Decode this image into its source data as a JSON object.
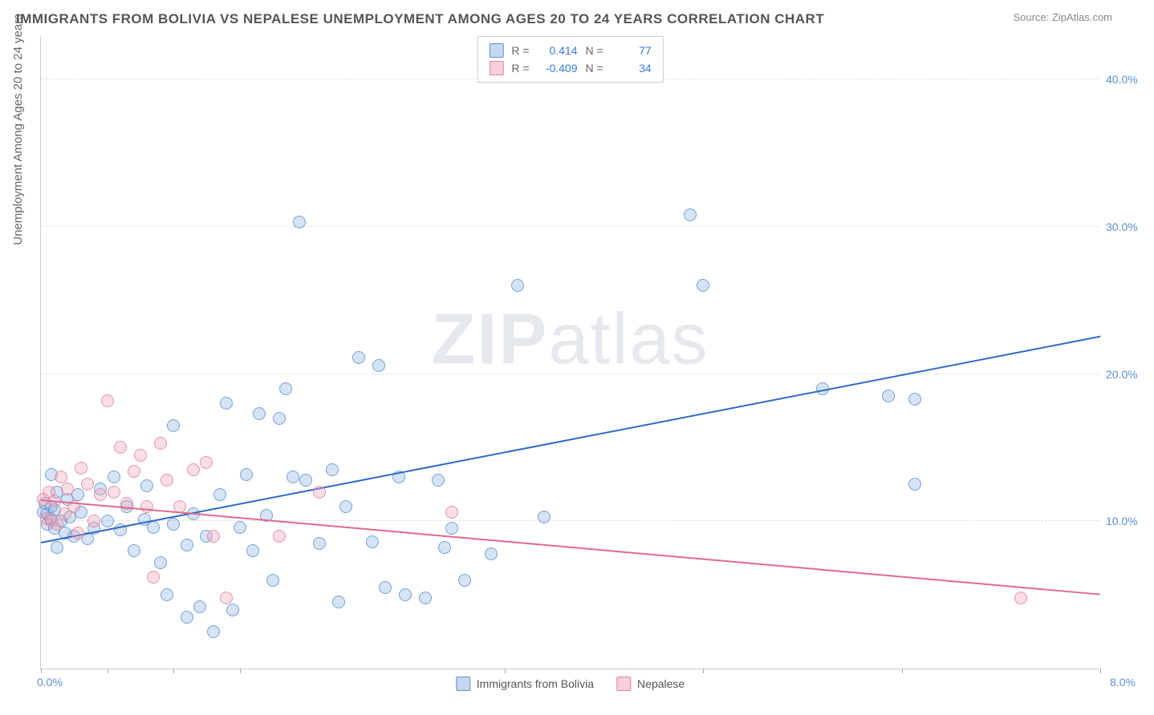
{
  "title": "IMMIGRANTS FROM BOLIVIA VS NEPALESE UNEMPLOYMENT AMONG AGES 20 TO 24 YEARS CORRELATION CHART",
  "source": "Source: ZipAtlas.com",
  "ylabel": "Unemployment Among Ages 20 to 24 years",
  "watermark_bold": "ZIP",
  "watermark_light": "atlas",
  "chart": {
    "type": "scatter",
    "xlim": [
      0,
      8
    ],
    "ylim": [
      0,
      43
    ],
    "x_tick_left": "0.0%",
    "x_tick_right": "8.0%",
    "x_tick_marks": [
      0,
      0.5,
      1.0,
      1.5,
      3.5,
      5.0,
      6.5,
      8.0
    ],
    "y_gridlines": [
      10,
      20,
      30,
      40
    ],
    "y_tick_labels": [
      "10.0%",
      "20.0%",
      "30.0%",
      "40.0%"
    ],
    "grid_color": "#e0e0e0",
    "axis_color": "#cccccc",
    "background_color": "#ffffff",
    "series": [
      {
        "name": "Immigrants from Bolivia",
        "color_fill": "rgba(137,176,224,0.35)",
        "color_stroke": "#5f91d2",
        "R": "0.414",
        "N": "77",
        "trendline": {
          "x1": 0,
          "y1": 8.5,
          "x2": 8.0,
          "y2": 22.5,
          "color": "#2e6bc7",
          "width": 2
        },
        "points": [
          [
            0.02,
            10.6
          ],
          [
            0.03,
            11.2
          ],
          [
            0.05,
            9.8
          ],
          [
            0.05,
            10.5
          ],
          [
            0.07,
            10.2
          ],
          [
            0.08,
            11.0
          ],
          [
            0.08,
            13.2
          ],
          [
            0.1,
            9.5
          ],
          [
            0.1,
            10.8
          ],
          [
            0.12,
            8.2
          ],
          [
            0.12,
            12.0
          ],
          [
            0.15,
            10.0
          ],
          [
            0.18,
            9.2
          ],
          [
            0.2,
            11.5
          ],
          [
            0.22,
            10.3
          ],
          [
            0.25,
            9.0
          ],
          [
            0.28,
            11.8
          ],
          [
            0.3,
            10.6
          ],
          [
            0.35,
            8.8
          ],
          [
            0.4,
            9.5
          ],
          [
            0.45,
            12.2
          ],
          [
            0.5,
            10.0
          ],
          [
            0.55,
            13.0
          ],
          [
            0.6,
            9.4
          ],
          [
            0.65,
            11.0
          ],
          [
            0.7,
            8.0
          ],
          [
            0.78,
            10.1
          ],
          [
            0.8,
            12.4
          ],
          [
            0.85,
            9.6
          ],
          [
            0.9,
            7.2
          ],
          [
            0.95,
            5.0
          ],
          [
            1.0,
            16.5
          ],
          [
            1.0,
            9.8
          ],
          [
            1.1,
            3.5
          ],
          [
            1.1,
            8.4
          ],
          [
            1.15,
            10.5
          ],
          [
            1.2,
            4.2
          ],
          [
            1.25,
            9.0
          ],
          [
            1.3,
            2.5
          ],
          [
            1.35,
            11.8
          ],
          [
            1.4,
            18.0
          ],
          [
            1.45,
            4.0
          ],
          [
            1.5,
            9.6
          ],
          [
            1.55,
            13.2
          ],
          [
            1.6,
            8.0
          ],
          [
            1.65,
            17.3
          ],
          [
            1.7,
            10.4
          ],
          [
            1.75,
            6.0
          ],
          [
            1.8,
            17.0
          ],
          [
            1.85,
            19.0
          ],
          [
            1.9,
            13.0
          ],
          [
            1.95,
            30.3
          ],
          [
            2.0,
            12.8
          ],
          [
            2.1,
            8.5
          ],
          [
            2.2,
            13.5
          ],
          [
            2.25,
            4.5
          ],
          [
            2.3,
            11.0
          ],
          [
            2.4,
            21.1
          ],
          [
            2.5,
            8.6
          ],
          [
            2.55,
            20.6
          ],
          [
            2.6,
            5.5
          ],
          [
            2.7,
            13.0
          ],
          [
            2.75,
            5.0
          ],
          [
            2.9,
            4.8
          ],
          [
            3.0,
            12.8
          ],
          [
            3.05,
            8.2
          ],
          [
            3.1,
            9.5
          ],
          [
            3.2,
            6.0
          ],
          [
            3.4,
            7.8
          ],
          [
            3.6,
            26.0
          ],
          [
            3.8,
            10.3
          ],
          [
            4.9,
            30.8
          ],
          [
            5.0,
            26.0
          ],
          [
            5.9,
            19.0
          ],
          [
            6.4,
            18.5
          ],
          [
            6.6,
            18.3
          ],
          [
            6.6,
            12.5
          ]
        ]
      },
      {
        "name": "Nepalese",
        "color_fill": "rgba(240,160,180,0.35)",
        "color_stroke": "#e1829b",
        "R": "-0.409",
        "N": "34",
        "trendline": {
          "x1": 0,
          "y1": 11.4,
          "x2": 8.0,
          "y2": 5.0,
          "color": "#e06a8a",
          "width": 2
        },
        "points": [
          [
            0.02,
            11.5
          ],
          [
            0.04,
            10.2
          ],
          [
            0.06,
            12.0
          ],
          [
            0.08,
            10.0
          ],
          [
            0.1,
            11.4
          ],
          [
            0.12,
            9.8
          ],
          [
            0.15,
            13.0
          ],
          [
            0.18,
            10.5
          ],
          [
            0.2,
            12.2
          ],
          [
            0.25,
            11.0
          ],
          [
            0.28,
            9.2
          ],
          [
            0.3,
            13.6
          ],
          [
            0.35,
            12.5
          ],
          [
            0.4,
            10.0
          ],
          [
            0.45,
            11.8
          ],
          [
            0.5,
            18.2
          ],
          [
            0.55,
            12.0
          ],
          [
            0.6,
            15.0
          ],
          [
            0.65,
            11.2
          ],
          [
            0.7,
            13.4
          ],
          [
            0.75,
            14.5
          ],
          [
            0.8,
            11.0
          ],
          [
            0.85,
            6.2
          ],
          [
            0.9,
            15.3
          ],
          [
            0.95,
            12.8
          ],
          [
            1.05,
            11.0
          ],
          [
            1.15,
            13.5
          ],
          [
            1.25,
            14.0
          ],
          [
            1.3,
            9.0
          ],
          [
            1.4,
            4.8
          ],
          [
            1.8,
            9.0
          ],
          [
            2.1,
            12.0
          ],
          [
            3.1,
            10.6
          ],
          [
            7.4,
            4.8
          ]
        ]
      }
    ]
  },
  "legend_bottom": [
    {
      "label": "Immigrants from Bolivia",
      "swatch": "blue"
    },
    {
      "label": "Nepalese",
      "swatch": "pink"
    }
  ]
}
